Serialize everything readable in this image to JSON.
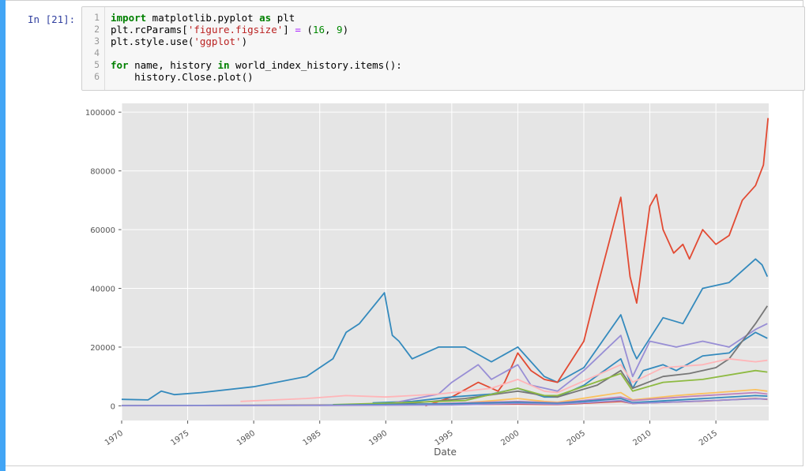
{
  "colors": {
    "cell_bar": "#42a5f5",
    "prompt": "#303f9f",
    "plot_bg": "#e5e5e5",
    "grid": "#ffffff"
  },
  "cell": {
    "prompt": "In [21]:",
    "lines": [
      {
        "n": "1",
        "tokens": [
          {
            "t": "import",
            "c": "kw"
          },
          {
            "t": " matplotlib.pyplot ",
            "c": ""
          },
          {
            "t": "as",
            "c": "kw"
          },
          {
            "t": " plt",
            "c": ""
          }
        ]
      },
      {
        "n": "2",
        "tokens": [
          {
            "t": "plt.rcParams[",
            "c": ""
          },
          {
            "t": "'figure.figsize'",
            "c": "st"
          },
          {
            "t": "] ",
            "c": ""
          },
          {
            "t": "=",
            "c": "op"
          },
          {
            "t": " (",
            "c": ""
          },
          {
            "t": "16",
            "c": "nm"
          },
          {
            "t": ", ",
            "c": ""
          },
          {
            "t": "9",
            "c": "nm"
          },
          {
            "t": ")",
            "c": ""
          }
        ]
      },
      {
        "n": "3",
        "tokens": [
          {
            "t": "plt.style.use(",
            "c": ""
          },
          {
            "t": "'ggplot'",
            "c": "st"
          },
          {
            "t": ")",
            "c": ""
          }
        ]
      },
      {
        "n": "4",
        "tokens": []
      },
      {
        "n": "5",
        "tokens": [
          {
            "t": "for",
            "c": "kw"
          },
          {
            "t": " name, history ",
            "c": ""
          },
          {
            "t": "in",
            "c": "kw"
          },
          {
            "t": " world_index_history.items():",
            "c": ""
          }
        ]
      },
      {
        "n": "6",
        "tokens": [
          {
            "t": "    history.Close.plot()",
            "c": ""
          }
        ]
      }
    ]
  },
  "chart_data": {
    "type": "line",
    "xlabel": "Date",
    "ylabel": "",
    "xlim": [
      1970,
      2019
    ],
    "ylim": [
      -5000,
      103000
    ],
    "x_ticks": [
      "1970",
      "1975",
      "1980",
      "1985",
      "1990",
      "1995",
      "2000",
      "2005",
      "2010",
      "2015"
    ],
    "y_ticks": [
      "0",
      "20000",
      "40000",
      "60000",
      "80000",
      "100000"
    ],
    "grid": true,
    "series": [
      {
        "color": "#348abd",
        "x": [
          1970,
          1972,
          1973,
          1974,
          1976,
          1980,
          1984,
          1986,
          1987,
          1988,
          1989.9,
          1990.5,
          1991,
          1992,
          1994,
          1996,
          1998,
          2000,
          2002,
          2003,
          2005,
          2007.8,
          2008.7,
          2009,
          2011,
          2012.5,
          2014,
          2016,
          2018,
          2018.5,
          2018.9
        ],
        "y": [
          2200,
          2000,
          5000,
          3800,
          4500,
          6500,
          10000,
          16000,
          25000,
          28000,
          38500,
          24000,
          22000,
          16000,
          20000,
          20000,
          15000,
          20000,
          10000,
          8000,
          13000,
          31000,
          19000,
          16000,
          30000,
          28000,
          40000,
          42000,
          50000,
          48000,
          44000
        ]
      },
      {
        "color": "#e24a33",
        "x": [
          1993,
          1995,
          1997,
          1998.5,
          1999,
          2000,
          2001,
          2002,
          2003,
          2004,
          2005,
          2006,
          2007.8,
          2008.5,
          2009,
          2010,
          2010.5,
          2011,
          2011.8,
          2012.5,
          2013,
          2014,
          2015,
          2016,
          2017,
          2018,
          2018.6,
          2018.95
        ],
        "y": [
          0,
          3000,
          8000,
          5000,
          8000,
          18000,
          12000,
          9000,
          8000,
          15000,
          22000,
          40000,
          71000,
          44000,
          35000,
          68000,
          72000,
          60000,
          52000,
          55000,
          50000,
          60000,
          55000,
          58000,
          70000,
          75000,
          82000,
          98000
        ]
      },
      {
        "color": "#348abd",
        "x": [
          1989,
          1992,
          1995,
          1998,
          2000,
          2002,
          2003,
          2005,
          2007.8,
          2008.7,
          2009.5,
          2011,
          2012,
          2014,
          2016,
          2017,
          2018,
          2018.9
        ],
        "y": [
          1000,
          1500,
          3000,
          4000,
          6000,
          3000,
          3000,
          7000,
          16000,
          6000,
          12000,
          14000,
          12000,
          17000,
          18000,
          22000,
          25000,
          23000
        ]
      },
      {
        "color": "#988ed5",
        "x": [
          1990,
          1994,
          1995,
          1997,
          1998,
          2000,
          2001,
          2003,
          2005,
          2007.8,
          2008.7,
          2010,
          2012,
          2014,
          2016,
          2018,
          2018.9
        ],
        "y": [
          500,
          4000,
          8000,
          14000,
          9000,
          14000,
          7000,
          5000,
          12000,
          24000,
          10000,
          22000,
          20000,
          22000,
          20000,
          26000,
          28000
        ]
      },
      {
        "color": "#777777",
        "x": [
          1988,
          1992,
          1996,
          2000,
          2002,
          2003,
          2006,
          2007.8,
          2008.7,
          2011,
          2013,
          2015,
          2016,
          2017,
          2018,
          2018.9
        ],
        "y": [
          600,
          900,
          2500,
          5000,
          3500,
          3000,
          7000,
          12000,
          6000,
          10000,
          11000,
          13000,
          16000,
          22000,
          28000,
          34000
        ]
      },
      {
        "color": "#fbc15e",
        "x": [
          1990,
          1996,
          2000,
          2002,
          2003,
          2007.8,
          2008.7,
          2012,
          2015,
          2018,
          2018.9
        ],
        "y": [
          300,
          1000,
          2500,
          1500,
          1200,
          4500,
          2000,
          3500,
          4500,
          5500,
          5000
        ]
      },
      {
        "color": "#8eba42",
        "x": [
          1986,
          1990,
          1996,
          2000,
          2002,
          2003,
          2007.8,
          2008.7,
          2011,
          2014,
          2018,
          2018.9
        ],
        "y": [
          400,
          900,
          1800,
          6000,
          3500,
          3500,
          11000,
          5000,
          8000,
          9000,
          12000,
          11500
        ]
      },
      {
        "color": "#ffb5b8",
        "x": [
          1979,
          1984,
          1987,
          1990,
          1994,
          1998,
          2000,
          2002,
          2003,
          2007.8,
          2008.7,
          2011,
          2014,
          2016,
          2018,
          2018.9
        ],
        "y": [
          1500,
          2500,
          3500,
          3000,
          4000,
          6000,
          9000,
          5000,
          4500,
          14000,
          8000,
          13000,
          14000,
          16000,
          15000,
          15500
        ]
      },
      {
        "color": "#bc82bd",
        "x": [
          1985,
          1992,
          2000,
          2003,
          2007.8,
          2008.7,
          2013,
          2018,
          2018.9
        ],
        "y": [
          200,
          500,
          1500,
          1000,
          3000,
          1800,
          3200,
          4500,
          4000
        ]
      },
      {
        "color": "#e24a33",
        "x": [
          1970,
          1990,
          2000,
          2003,
          2007.8,
          2008.7,
          2014,
          2018,
          2018.9
        ],
        "y": [
          80,
          300,
          600,
          400,
          1500,
          800,
          1600,
          2500,
          2200
        ]
      },
      {
        "color": "#348abd",
        "x": [
          1970,
          1985,
          1995,
          2000,
          2003,
          2007.8,
          2008.7,
          2013,
          2018,
          2018.9
        ],
        "y": [
          100,
          200,
          700,
          1200,
          800,
          2500,
          1100,
          2200,
          3500,
          3300
        ]
      },
      {
        "color": "#988ed5",
        "x": [
          1970,
          1985,
          1995,
          2000,
          2003,
          2007.8,
          2008.7,
          2013,
          2018,
          2018.9
        ],
        "y": [
          50,
          100,
          300,
          800,
          500,
          1800,
          800,
          1500,
          2400,
          2300
        ]
      }
    ]
  }
}
